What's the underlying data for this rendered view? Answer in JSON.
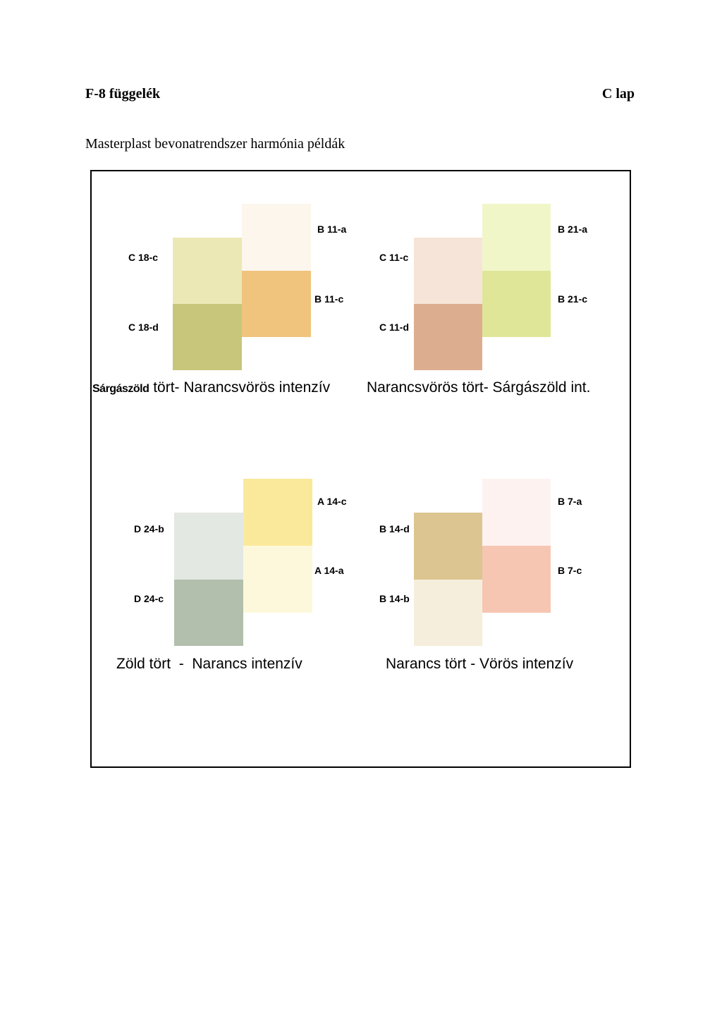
{
  "header": {
    "appendix": "F-8 függelék",
    "sheet": "C lap"
  },
  "subtitle": "Masterplast bevonatrendszer harmónia példák",
  "groups": [
    {
      "caption_bold": "Sárgászöld",
      "caption": " tört- Narancsvörös intenzív",
      "swatches": [
        {
          "code": "C 18-c",
          "color": "#ebe8b5"
        },
        {
          "code": "C 18-d",
          "color": "#c7c67b"
        },
        {
          "code": "B 11-a",
          "color": "#fdf6ed"
        },
        {
          "code": "B 11-c",
          "color": "#f0c47d"
        }
      ]
    },
    {
      "caption_bold": "",
      "caption": "Narancsvörös tört- Sárgászöld int.",
      "swatches": [
        {
          "code": "C 11-c",
          "color": "#f6e4d8"
        },
        {
          "code": "C 11-d",
          "color": "#dcad8e"
        },
        {
          "code": "B 21-a",
          "color": "#f1f6c9"
        },
        {
          "code": "B 21-c",
          "color": "#e0e698"
        }
      ]
    },
    {
      "caption_bold": "",
      "caption": "Zöld tört  -  Narancs intenzív",
      "swatches": [
        {
          "code": "D 24-b",
          "color": "#e4e8e2"
        },
        {
          "code": "D 24-c",
          "color": "#b1bfac"
        },
        {
          "code": "A 14-c",
          "color": "#fbe99b"
        },
        {
          "code": "A 14-a",
          "color": "#fdf8db"
        }
      ]
    },
    {
      "caption_bold": "",
      "caption": "Narancs tört - Vörös intenzív",
      "swatches": [
        {
          "code": "B 14-d",
          "color": "#dcc590"
        },
        {
          "code": "B 14-b",
          "color": "#f6eedc"
        },
        {
          "code": "B 7-a",
          "color": "#fdf2f0"
        },
        {
          "code": "B 7-c",
          "color": "#f6c6b2"
        }
      ]
    }
  ]
}
